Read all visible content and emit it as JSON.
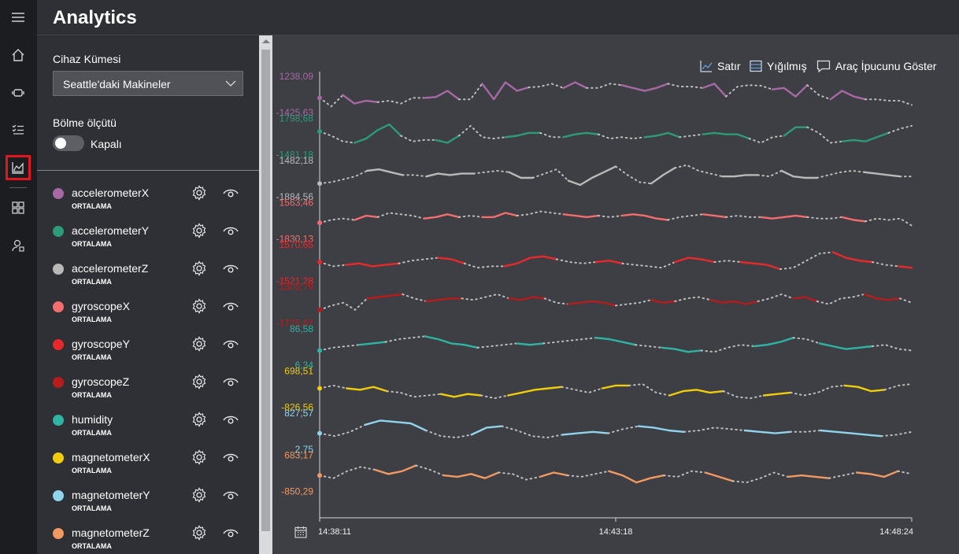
{
  "app": {
    "title": "Analytics"
  },
  "nav": {
    "items": [
      {
        "icon": "menu-icon"
      },
      {
        "icon": "home-icon"
      },
      {
        "icon": "device-icon"
      },
      {
        "icon": "rules-icon"
      },
      {
        "icon": "analytics-icon",
        "active": true
      },
      {
        "icon": "dashboard-icon"
      },
      {
        "icon": "admin-icon"
      }
    ]
  },
  "filters": {
    "device_group_label": "Cihaz Kümesi",
    "device_group_value": "Seattle'daki Makineler",
    "split_label": "Bölme ölçütü",
    "split_toggle_label": "Kapalı",
    "split_on": false
  },
  "sensors": [
    {
      "name": "accelerometerX",
      "agg": "ORTALAMA",
      "color": "#a769a3"
    },
    {
      "name": "accelerometerY",
      "agg": "ORTALAMA",
      "color": "#2d9a78"
    },
    {
      "name": "accelerometerZ",
      "agg": "ORTALAMA",
      "color": "#b9b9b9"
    },
    {
      "name": "gyroscopeX",
      "agg": "ORTALAMA",
      "color": "#f26d6d"
    },
    {
      "name": "gyroscopeY",
      "agg": "ORTALAMA",
      "color": "#e8282b"
    },
    {
      "name": "gyroscopeZ",
      "agg": "ORTALAMA",
      "color": "#b71c1c"
    },
    {
      "name": "humidity",
      "agg": "ORTALAMA",
      "color": "#2fb3a3"
    },
    {
      "name": "magnetometerX",
      "agg": "ORTALAMA",
      "color": "#f0cc0a"
    },
    {
      "name": "magnetometerY",
      "agg": "ORTALAMA",
      "color": "#8fd4ec"
    },
    {
      "name": "magnetometerZ",
      "agg": "ORTALAMA",
      "color": "#f19961"
    }
  ],
  "toolbar": {
    "line_label": "Satır",
    "stacked_label": "Yığılmış",
    "tooltip_label": "Araç İpucunu Göster"
  },
  "chart_data": {
    "type": "line",
    "layout": "stacked",
    "x_ticks": [
      "14:38:11",
      "14:43:18",
      "14:48:24"
    ],
    "series": [
      {
        "name": "accelerometerX",
        "color": "#a769a3",
        "y_max_label": "1238,09",
        "y_min_label": "-1425,63",
        "values": [
          0.35,
          0.05,
          0.45,
          0.15,
          0.25,
          0.2,
          0.25,
          0.15,
          0.35,
          0.35,
          0.38,
          0.6,
          0.3,
          0.3,
          0.85,
          0.3,
          0.9,
          0.6,
          0.72,
          0.75,
          0.85,
          0.7,
          0.9,
          0.7,
          0.7,
          0.85,
          0.8,
          0.7,
          0.6,
          0.7,
          0.85,
          0.75,
          0.75,
          0.7,
          0.85,
          0.4,
          0.75,
          0.8,
          0.78,
          0.65,
          0.7,
          0.4,
          0.8,
          0.45,
          0.3,
          0.6,
          0.4,
          0.3,
          0.3,
          0.25,
          0.25,
          0.1
        ]
      },
      {
        "name": "accelerometerY",
        "color": "#2d9a78",
        "y_max_label": "1798,68",
        "y_min_label": "-1481,18",
        "values": [
          0.65,
          0.5,
          0.3,
          0.25,
          0.4,
          0.7,
          0.9,
          0.5,
          0.3,
          0.35,
          0.35,
          0.25,
          0.5,
          0.85,
          0.45,
          0.4,
          0.45,
          0.5,
          0.6,
          0.6,
          0.45,
          0.45,
          0.55,
          0.6,
          0.55,
          0.4,
          0.45,
          0.4,
          0.45,
          0.5,
          0.6,
          0.45,
          0.5,
          0.55,
          0.6,
          0.55,
          0.55,
          0.4,
          0.25,
          0.45,
          0.5,
          0.8,
          0.8,
          0.6,
          0.25,
          0.3,
          0.35,
          0.3,
          0.45,
          0.6,
          0.75,
          0.85
        ]
      },
      {
        "name": "accelerometerZ",
        "color": "#b9b9b9",
        "y_max_label": "1482,18",
        "y_min_label": "-1884,56",
        "values": [
          0.3,
          0.35,
          0.45,
          0.55,
          0.75,
          0.8,
          0.7,
          0.6,
          0.6,
          0.55,
          0.65,
          0.6,
          0.65,
          0.65,
          0.7,
          0.75,
          0.7,
          0.5,
          0.5,
          0.65,
          0.8,
          0.4,
          0.25,
          0.5,
          0.7,
          0.9,
          0.6,
          0.35,
          0.3,
          0.6,
          0.85,
          0.95,
          0.75,
          0.65,
          0.55,
          0.55,
          0.6,
          0.6,
          0.55,
          0.75,
          0.55,
          0.5,
          0.5,
          0.6,
          0.7,
          0.75,
          0.7,
          0.65,
          0.6,
          0.55,
          0.55
        ]
      },
      {
        "name": "gyroscopeX",
        "color": "#f26d6d",
        "y_max_label": "1563,46",
        "y_min_label": "-1830,13",
        "values": [
          0.4,
          0.5,
          0.55,
          0.5,
          0.65,
          0.6,
          0.75,
          0.7,
          0.65,
          0.55,
          0.6,
          0.7,
          0.6,
          0.65,
          0.6,
          0.6,
          0.75,
          0.65,
          0.7,
          0.8,
          0.75,
          0.7,
          0.65,
          0.6,
          0.65,
          0.6,
          0.65,
          0.7,
          0.65,
          0.55,
          0.5,
          0.6,
          0.65,
          0.7,
          0.65,
          0.6,
          0.65,
          0.6,
          0.6,
          0.55,
          0.6,
          0.65,
          0.6,
          0.55,
          0.55,
          0.6,
          0.5,
          0.45,
          0.55,
          0.5,
          0.55,
          0.3
        ]
      },
      {
        "name": "gyroscopeY",
        "color": "#e8282b",
        "y_max_label": "1570,65",
        "y_min_label": "-1521,28",
        "values": [
          0.5,
          0.35,
          0.4,
          0.45,
          0.35,
          0.4,
          0.45,
          0.55,
          0.6,
          0.65,
          0.6,
          0.45,
          0.3,
          0.35,
          0.35,
          0.45,
          0.65,
          0.7,
          0.6,
          0.5,
          0.45,
          0.5,
          0.55,
          0.45,
          0.4,
          0.35,
          0.3,
          0.5,
          0.65,
          0.6,
          0.5,
          0.55,
          0.5,
          0.45,
          0.4,
          0.25,
          0.3,
          0.55,
          0.8,
          0.85,
          0.65,
          0.55,
          0.5,
          0.4,
          0.35,
          0.3
        ]
      },
      {
        "name": "gyroscopeZ",
        "color": "#b71c1c",
        "y_max_label": "1306,79",
        "y_min_label": "-1725,87",
        "values": [
          0.3,
          0.45,
          0.55,
          0.3,
          0.7,
          0.75,
          0.8,
          0.85,
          0.7,
          0.6,
          0.65,
          0.7,
          0.7,
          0.65,
          0.75,
          0.85,
          0.7,
          0.65,
          0.75,
          0.7,
          0.55,
          0.5,
          0.55,
          0.6,
          0.55,
          0.45,
          0.5,
          0.55,
          0.65,
          0.55,
          0.6,
          0.7,
          0.75,
          0.65,
          0.55,
          0.6,
          0.5,
          0.6,
          0.7,
          0.85,
          0.7,
          0.75,
          0.6,
          0.5,
          0.7,
          0.75,
          0.85,
          0.7,
          0.65,
          0.7,
          0.55
        ]
      },
      {
        "name": "humidity",
        "color": "#2fb3a3",
        "y_max_label": "86,58",
        "y_min_label": "6,34",
        "values": [
          0.35,
          0.45,
          0.5,
          0.55,
          0.6,
          0.65,
          0.75,
          0.8,
          0.85,
          0.75,
          0.6,
          0.55,
          0.45,
          0.5,
          0.55,
          0.6,
          0.55,
          0.6,
          0.65,
          0.7,
          0.75,
          0.8,
          0.75,
          0.65,
          0.55,
          0.5,
          0.45,
          0.4,
          0.3,
          0.35,
          0.3,
          0.45,
          0.55,
          0.5,
          0.55,
          0.65,
          0.8,
          0.75,
          0.6,
          0.5,
          0.4,
          0.45,
          0.5,
          0.55,
          0.4,
          0.35
        ]
      },
      {
        "name": "magnetometerX",
        "color": "#f0cc0a",
        "y_max_label": "698,51",
        "y_min_label": "-826,56",
        "values": [
          0.5,
          0.6,
          0.5,
          0.45,
          0.55,
          0.4,
          0.35,
          0.2,
          0.25,
          0.3,
          0.2,
          0.3,
          0.25,
          0.15,
          0.25,
          0.35,
          0.45,
          0.5,
          0.55,
          0.45,
          0.35,
          0.5,
          0.6,
          0.6,
          0.65,
          0.35,
          0.25,
          0.4,
          0.45,
          0.35,
          0.4,
          0.2,
          0.15,
          0.25,
          0.3,
          0.35,
          0.25,
          0.35,
          0.55,
          0.6,
          0.55,
          0.4,
          0.45,
          0.6,
          0.65
        ]
      },
      {
        "name": "magnetometerY",
        "color": "#8fd4ec",
        "y_max_label": "827,57",
        "y_min_label": "2,75",
        "values": [
          0.4,
          0.3,
          0.45,
          0.7,
          0.85,
          0.8,
          0.75,
          0.5,
          0.3,
          0.25,
          0.35,
          0.6,
          0.65,
          0.5,
          0.3,
          0.25,
          0.35,
          0.4,
          0.45,
          0.4,
          0.55,
          0.65,
          0.6,
          0.5,
          0.45,
          0.5,
          0.6,
          0.55,
          0.5,
          0.45,
          0.4,
          0.45,
          0.45,
          0.5,
          0.45,
          0.4,
          0.35,
          0.3,
          0.35,
          0.45
        ]
      },
      {
        "name": "magnetometerZ",
        "color": "#f19961",
        "y_max_label": "683,17",
        "y_min_label": "-850,29",
        "values": [
          0.4,
          0.3,
          0.55,
          0.7,
          0.6,
          0.45,
          0.55,
          0.75,
          0.6,
          0.4,
          0.35,
          0.45,
          0.3,
          0.5,
          0.45,
          0.25,
          0.35,
          0.5,
          0.4,
          0.35,
          0.45,
          0.55,
          0.4,
          0.15,
          0.3,
          0.4,
          0.35,
          0.55,
          0.5,
          0.35,
          0.2,
          0.15,
          0.3,
          0.5,
          0.35,
          0.4,
          0.35,
          0.3,
          0.4,
          0.5,
          0.45,
          0.35,
          0.55,
          0.45
        ]
      }
    ]
  }
}
